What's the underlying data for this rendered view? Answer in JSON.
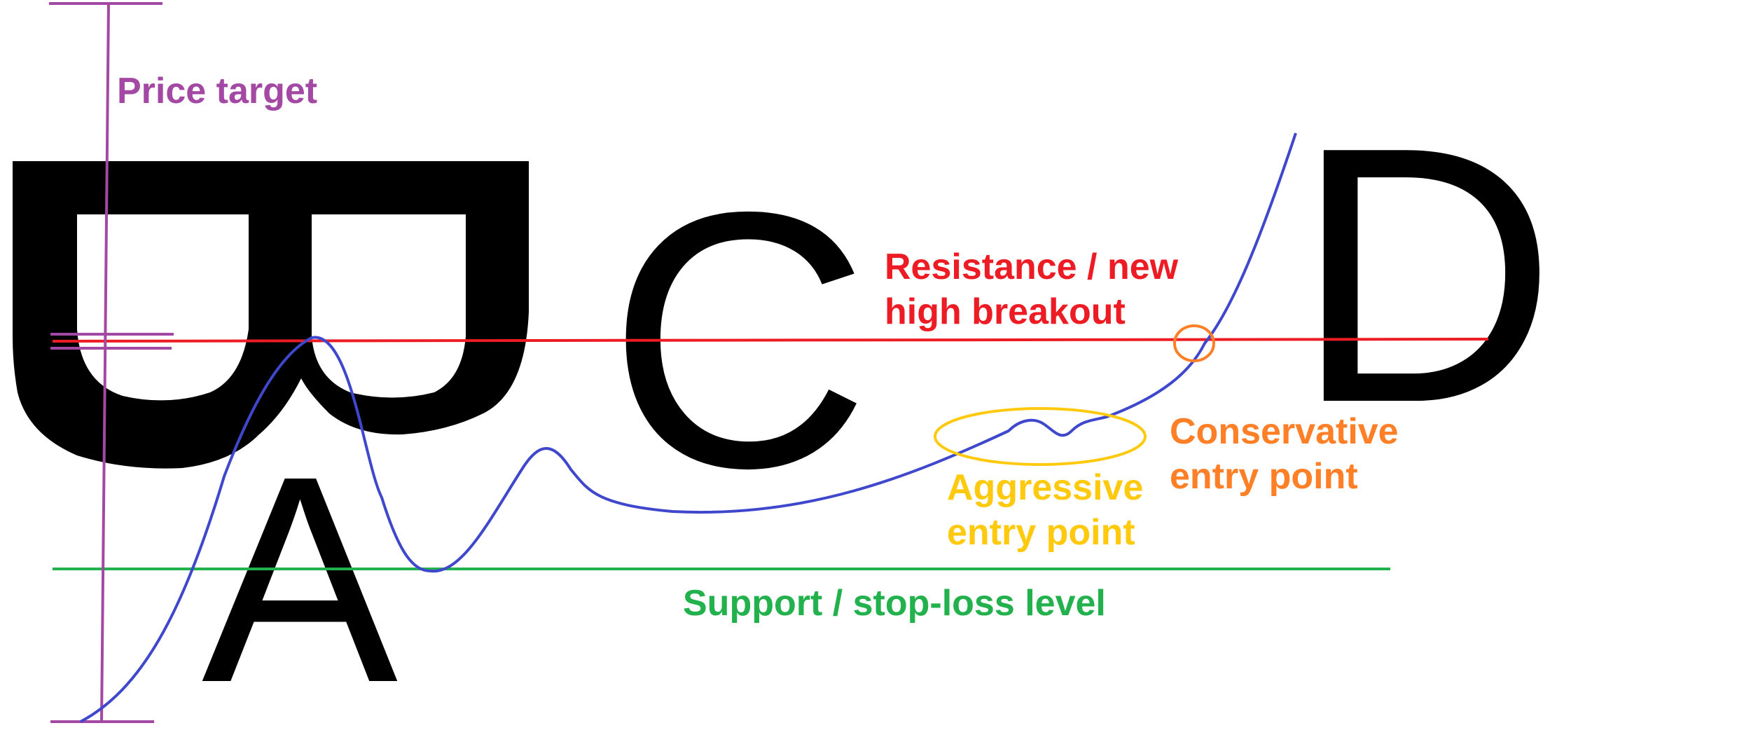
{
  "letters": {
    "a": "A",
    "c": "C",
    "d": "D"
  },
  "labels": {
    "price_target": "Price target",
    "resistance_line1": "Resistance / new",
    "resistance_line2": "high breakout",
    "conservative_line1": "Conservative",
    "conservative_line2": "entry point",
    "aggressive_line1": "Aggressive",
    "aggressive_line2": "entry point",
    "support": "Support / stop-loss level"
  },
  "colors": {
    "price_target": "#a349a4",
    "resistance": "#ed1c24",
    "conservative": "#ff7f27",
    "aggressive": "#ffc90e",
    "support": "#22b14c",
    "price_line": "#3f48cc",
    "letters": "#000000"
  }
}
